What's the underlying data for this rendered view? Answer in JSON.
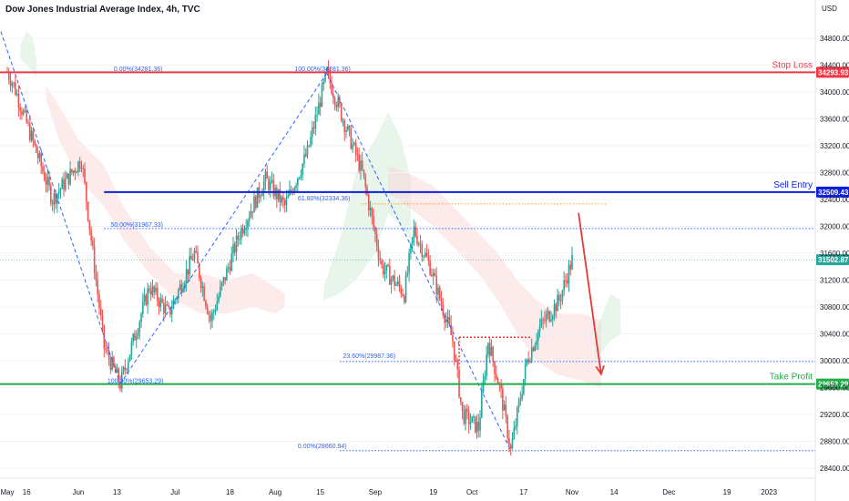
{
  "header": {
    "title": "Dow Jones Industrial Average Index, 4h, TVC"
  },
  "chart_data": {
    "type": "candlestick",
    "price_axis": {
      "unit": "USD",
      "ylim": [
        28200,
        35000
      ],
      "ticks": [
        "34800.00",
        "34400.00",
        "34000.00",
        "33600.00",
        "33200.00",
        "32800.00",
        "32400.00",
        "32000.00",
        "31600.00",
        "31200.00",
        "30800.00",
        "30400.00",
        "30000.00",
        "29600.00",
        "29200.00",
        "28800.00",
        "28400.00"
      ]
    },
    "time_axis": {
      "ticks": [
        {
          "label": "May",
          "day": 0
        },
        {
          "label": "16",
          "day": 6
        },
        {
          "label": "Jun",
          "day": 22
        },
        {
          "label": "13",
          "day": 34
        },
        {
          "label": "Jul",
          "day": 52
        },
        {
          "label": "18",
          "day": 69
        },
        {
          "label": "Aug",
          "day": 83
        },
        {
          "label": "15",
          "day": 97
        },
        {
          "label": "Sep",
          "day": 114
        },
        {
          "label": "19",
          "day": 132
        },
        {
          "label": "Oct",
          "day": 144
        },
        {
          "label": "17",
          "day": 160
        },
        {
          "label": "Nov",
          "day": 175
        },
        {
          "label": "14",
          "day": 188
        },
        {
          "label": "Dec",
          "day": 205
        },
        {
          "label": "19",
          "day": 223
        },
        {
          "label": "2023",
          "day": 236
        }
      ]
    },
    "levels": [
      {
        "name": "Stop Loss",
        "price": 34293.93,
        "badge": "34293.93",
        "color": "#f23645"
      },
      {
        "name": "Sell Entry",
        "price": 32509.43,
        "badge": "32509.43",
        "color": "#0d1fd8"
      },
      {
        "name": "Take Profit",
        "price": 29653.29,
        "badge": "29653.29",
        "color": "#22ab4a"
      }
    ],
    "last_price": {
      "value": 31502.87,
      "badge": "31502.87",
      "color": "#26a69a"
    },
    "fib_labels": [
      {
        "text": "0.00%(34281.36)",
        "price": 34281.36
      },
      {
        "text": "100.00%(34281.36)",
        "price": 34281.36
      },
      {
        "text": "61.80%(32334.36)",
        "price": 32334.36
      },
      {
        "text": "50.00%(31967.33)",
        "price": 31967.33
      },
      {
        "text": "23.60%(29987.36)",
        "price": 29987.36
      },
      {
        "text": "100.00%(29653.29)",
        "price": 29653.29
      },
      {
        "text": "0.00%(28660.94)",
        "price": 28660.94
      }
    ],
    "swings": [
      {
        "day": -5,
        "price": 34800
      },
      {
        "day": 2,
        "price": 34100
      },
      {
        "day": 14,
        "price": 32400
      },
      {
        "day": 23,
        "price": 33000
      },
      {
        "day": 30,
        "price": 30200
      },
      {
        "day": 35,
        "price": 29653
      },
      {
        "day": 44,
        "price": 31100
      },
      {
        "day": 50,
        "price": 30700
      },
      {
        "day": 58,
        "price": 31600
      },
      {
        "day": 63,
        "price": 30600
      },
      {
        "day": 72,
        "price": 31900
      },
      {
        "day": 80,
        "price": 32700
      },
      {
        "day": 86,
        "price": 32300
      },
      {
        "day": 93,
        "price": 33100
      },
      {
        "day": 99,
        "price": 34281
      },
      {
        "day": 104,
        "price": 33600
      },
      {
        "day": 110,
        "price": 32800
      },
      {
        "day": 116,
        "price": 31400
      },
      {
        "day": 123,
        "price": 31000
      },
      {
        "day": 126,
        "price": 31950
      },
      {
        "day": 131,
        "price": 31400
      },
      {
        "day": 138,
        "price": 30300
      },
      {
        "day": 141,
        "price": 29200
      },
      {
        "day": 146,
        "price": 29000
      },
      {
        "day": 149,
        "price": 30300
      },
      {
        "day": 153,
        "price": 29500
      },
      {
        "day": 156,
        "price": 28661
      },
      {
        "day": 161,
        "price": 30000
      },
      {
        "day": 165,
        "price": 30500
      },
      {
        "day": 171,
        "price": 30900
      },
      {
        "day": 175,
        "price": 31500
      }
    ],
    "projection": [
      {
        "day": 177,
        "price": 32200
      },
      {
        "day": 184,
        "price": 29800
      }
    ]
  }
}
